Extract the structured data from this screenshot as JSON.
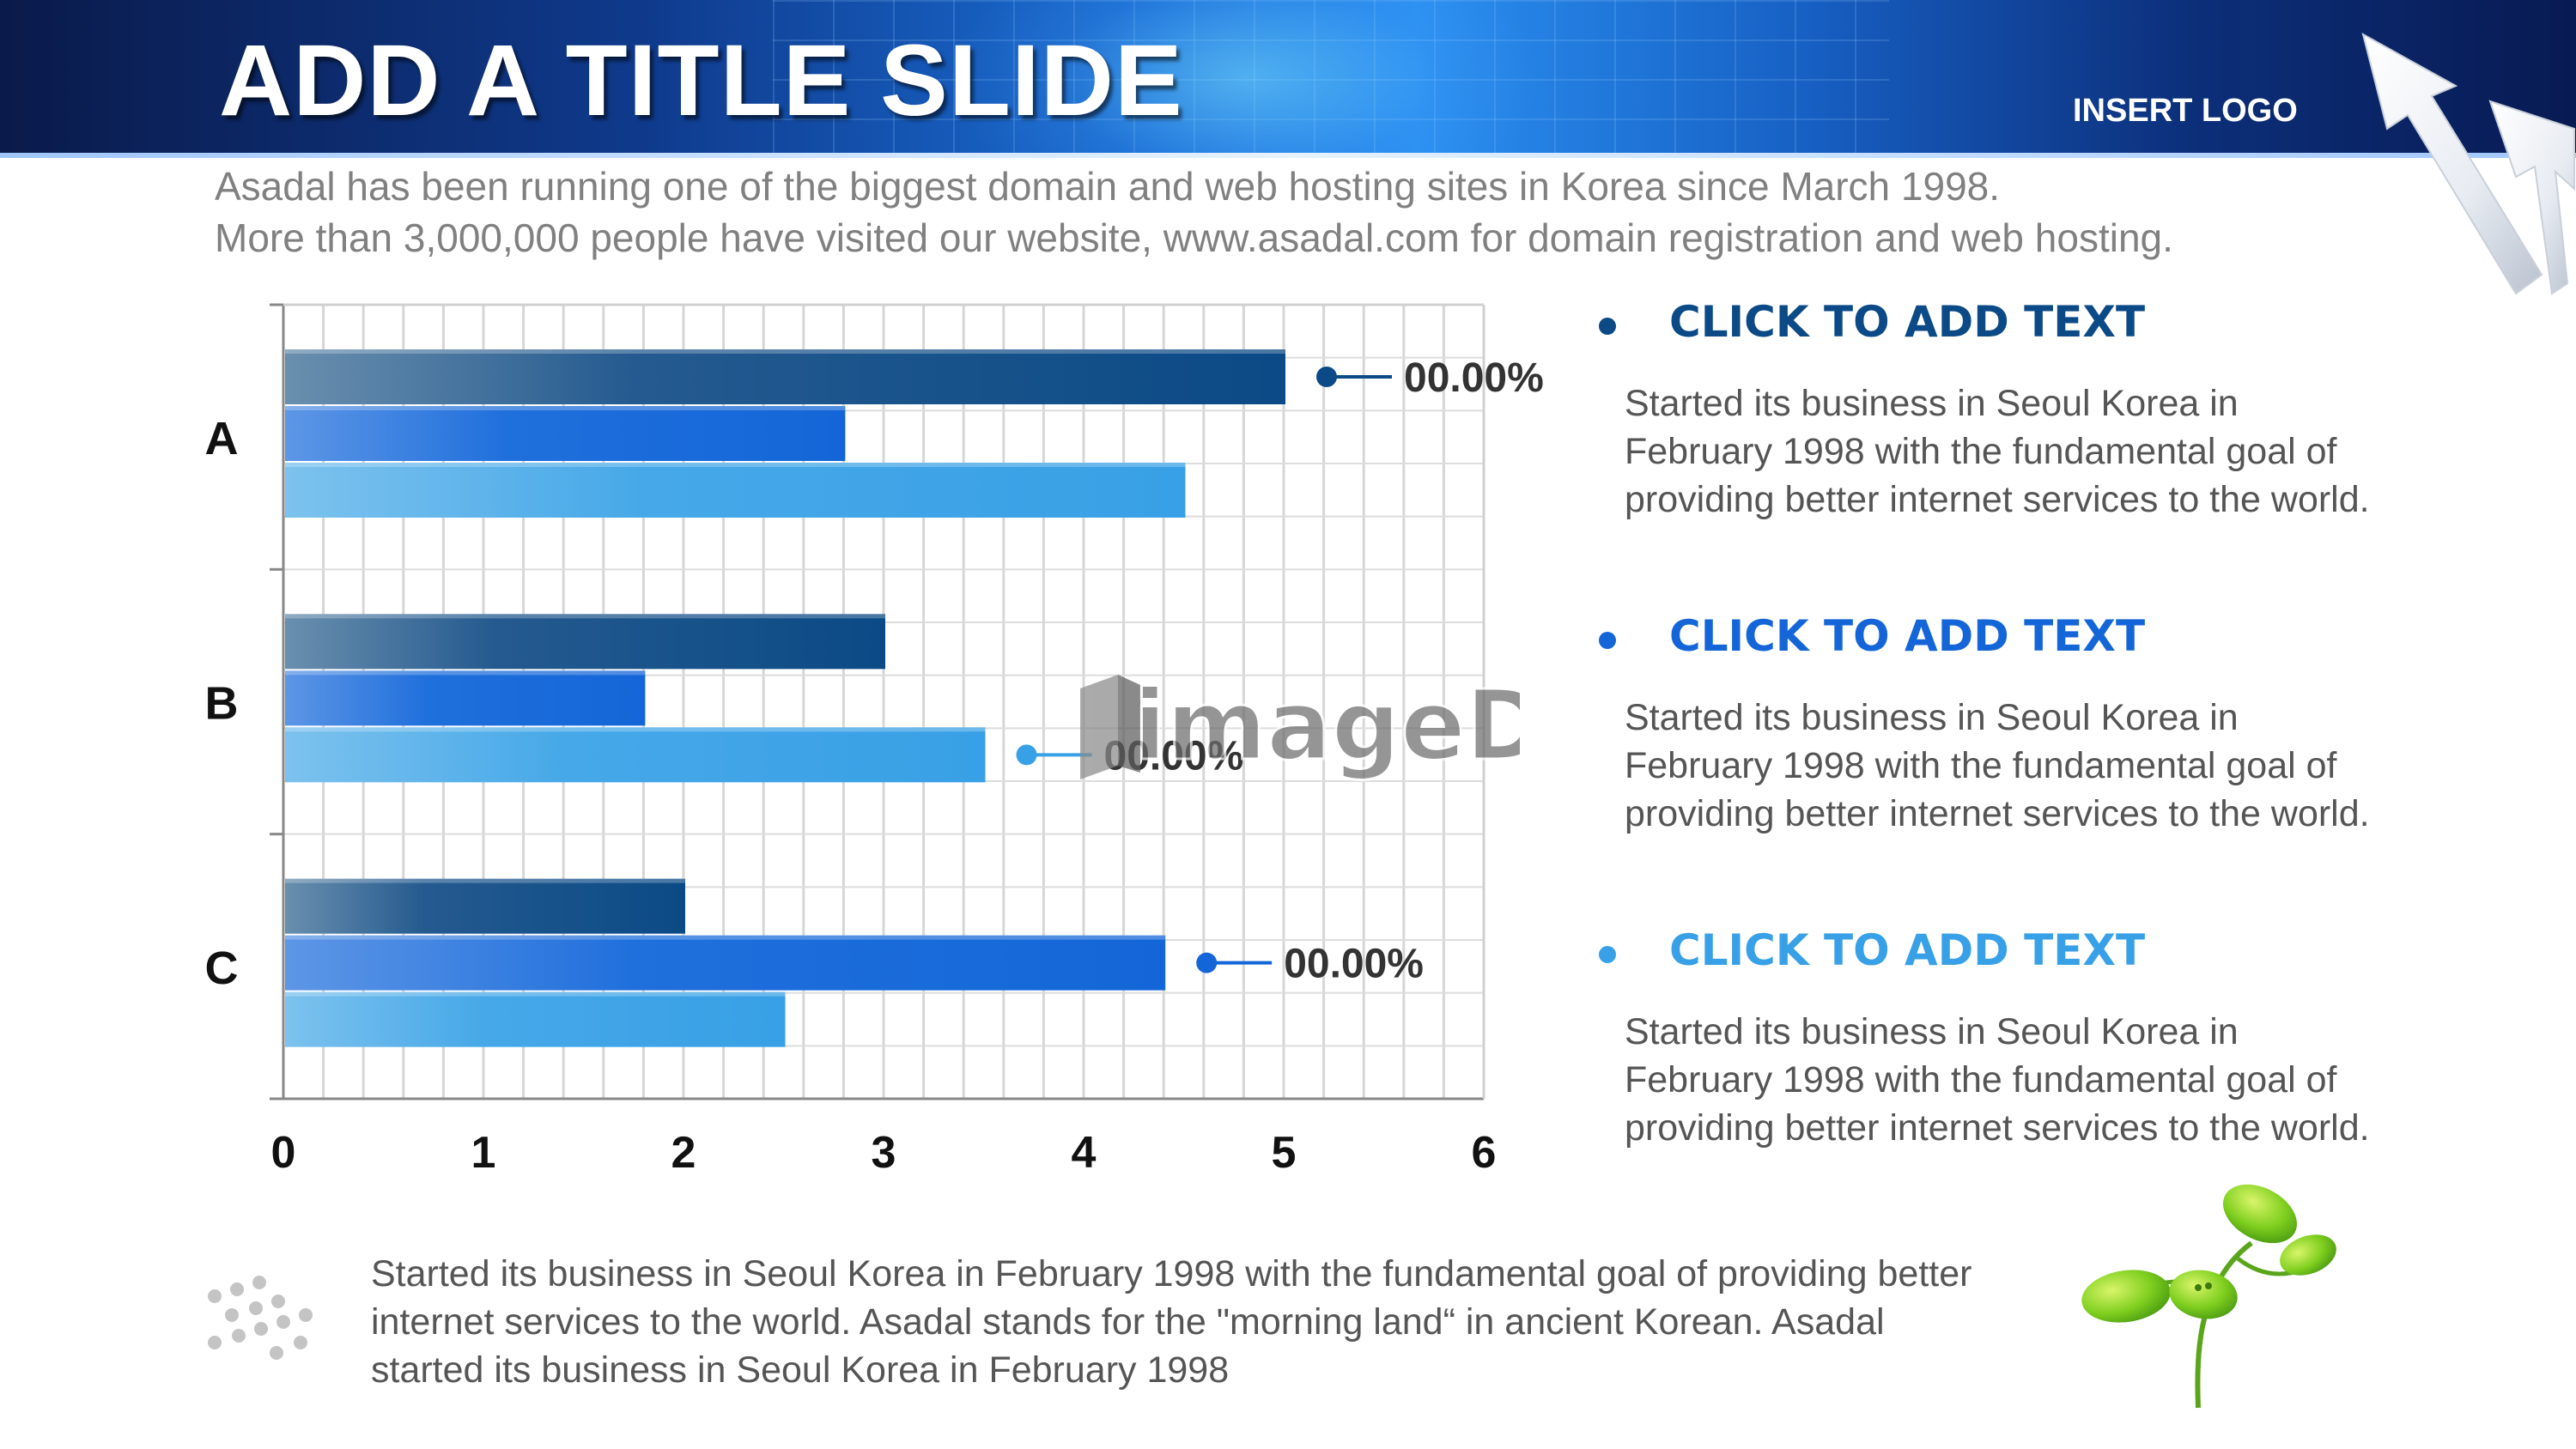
{
  "header": {
    "title": "ADD A TITLE SLIDE",
    "logo_text": "INSERT LOGO"
  },
  "intro": {
    "line1": "Asadal has been running one of the biggest domain and web hosting sites in Korea since March 1998.",
    "line2": "More than 3,000,000 people have visited our website,  www.asadal.com for domain registration and web hosting."
  },
  "chart_data": {
    "type": "bar",
    "orientation": "horizontal",
    "categories": [
      "A",
      "B",
      "C"
    ],
    "series": [
      {
        "values": [
          5,
          3,
          2
        ],
        "color": "#0b4a86"
      },
      {
        "values": [
          2.8,
          1.8,
          4.4
        ],
        "color": "#1466d8"
      },
      {
        "values": [
          4.5,
          3.5,
          2.5
        ],
        "color": "#38a0e6"
      }
    ],
    "xlim": [
      0,
      6
    ],
    "x_ticks": [
      "0",
      "1",
      "2",
      "3",
      "4",
      "5",
      "6"
    ],
    "grid": true,
    "title": "",
    "xlabel": "",
    "ylabel": "",
    "callouts": [
      {
        "category": "A",
        "series": 0,
        "label": "00.00%",
        "color": "#0b4a86"
      },
      {
        "category": "B",
        "series": 2,
        "label": "00.00%",
        "color": "#38a0e6"
      },
      {
        "category": "C",
        "series": 1,
        "label": "00.00%",
        "color": "#1466d8"
      }
    ]
  },
  "watermark": {
    "text": "imageDJ"
  },
  "bullets": [
    {
      "heading": "CLICK TO ADD TEXT",
      "color": "#0b4a86",
      "body": "Started its business in Seoul Korea  in February 1998 with the fundamental goal of providing better internet services to the world."
    },
    {
      "heading": "CLICK TO ADD TEXT",
      "color": "#1466d8",
      "body": "Started its business in Seoul Korea  in February 1998 with the fundamental goal of providing better internet services to the world."
    },
    {
      "heading": "CLICK TO ADD TEXT",
      "color": "#38a0e6",
      "body": "Started its business in Seoul Korea  in February 1998 with the fundamental goal of providing better internet services to the world."
    }
  ],
  "footer": {
    "text": "Started its business in Seoul Korea  in February 1998 with the fundamental goal of providing better internet services to the world. Asadal stands for the \"morning land“ in ancient Korean. Asadal started its business in Seoul Korea  in February 1998"
  },
  "icons": {
    "arrows": "arrows-up-right-icon",
    "dots": "dots-pattern-icon",
    "sprout": "sprout-icon"
  }
}
